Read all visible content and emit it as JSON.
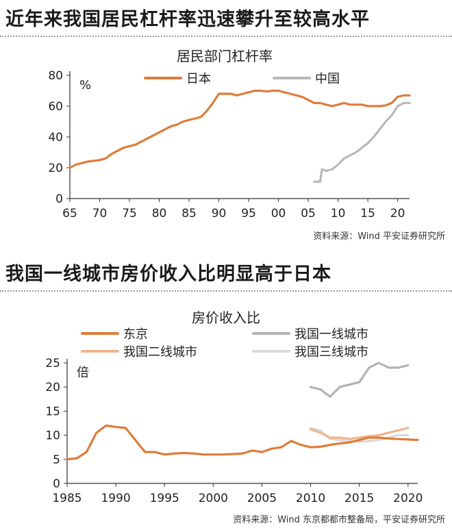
{
  "headlines": {
    "top": "近年来我国居民杠杆率迅速攀升至较高水平",
    "bottom": "我国一线城市房价收入比明显高于日本"
  },
  "chart_data": [
    {
      "type": "line",
      "title": "居民部门杠杆率",
      "unit_label": "%",
      "source": "资料来源：Wind   平安证券研究所",
      "xlim": [
        1965,
        2022
      ],
      "ylim": [
        0,
        80
      ],
      "x_ticks": [
        1965,
        1970,
        1975,
        1980,
        1985,
        1990,
        1995,
        2000,
        2005,
        2010,
        2015,
        2020
      ],
      "x_tick_labels": [
        "65",
        "70",
        "75",
        "80",
        "85",
        "90",
        "95",
        "00",
        "05",
        "10",
        "15",
        "20"
      ],
      "y_ticks": [
        0,
        20,
        40,
        60,
        80
      ],
      "grid": false,
      "legend_position": "top",
      "series": [
        {
          "name": "日本",
          "color": "#E07B39",
          "points": [
            [
              1965,
              20
            ],
            [
              1966,
              22
            ],
            [
              1967,
              23
            ],
            [
              1968,
              24
            ],
            [
              1969,
              24.5
            ],
            [
              1970,
              25
            ],
            [
              1971,
              26
            ],
            [
              1972,
              29
            ],
            [
              1973,
              31
            ],
            [
              1974,
              33
            ],
            [
              1975,
              34
            ],
            [
              1976,
              35
            ],
            [
              1977,
              37
            ],
            [
              1978,
              39
            ],
            [
              1979,
              41
            ],
            [
              1980,
              43
            ],
            [
              1981,
              45
            ],
            [
              1982,
              47
            ],
            [
              1983,
              48
            ],
            [
              1984,
              50
            ],
            [
              1985,
              51
            ],
            [
              1986,
              52
            ],
            [
              1987,
              53
            ],
            [
              1988,
              57
            ],
            [
              1989,
              62
            ],
            [
              1990,
              68
            ],
            [
              1991,
              68
            ],
            [
              1992,
              68
            ],
            [
              1993,
              67
            ],
            [
              1994,
              68
            ],
            [
              1995,
              69
            ],
            [
              1996,
              70
            ],
            [
              1997,
              70
            ],
            [
              1998,
              69.5
            ],
            [
              1999,
              70
            ],
            [
              2000,
              70
            ],
            [
              2001,
              69
            ],
            [
              2002,
              68
            ],
            [
              2003,
              67
            ],
            [
              2004,
              66
            ],
            [
              2005,
              64
            ],
            [
              2006,
              62
            ],
            [
              2007,
              62
            ],
            [
              2008,
              61
            ],
            [
              2009,
              60
            ],
            [
              2010,
              61
            ],
            [
              2011,
              62
            ],
            [
              2012,
              61
            ],
            [
              2013,
              61
            ],
            [
              2014,
              61
            ],
            [
              2015,
              60
            ],
            [
              2016,
              60
            ],
            [
              2017,
              60
            ],
            [
              2018,
              60.5
            ],
            [
              2019,
              62
            ],
            [
              2020,
              66
            ],
            [
              2021,
              67
            ],
            [
              2022,
              67
            ]
          ]
        },
        {
          "name": "中国",
          "color": "#B8B8BA",
          "points": [
            [
              2006,
              11
            ],
            [
              2007,
              11
            ],
            [
              2007.3,
              19
            ],
            [
              2008,
              18
            ],
            [
              2009,
              19
            ],
            [
              2010,
              22
            ],
            [
              2011,
              26
            ],
            [
              2012,
              28
            ],
            [
              2013,
              30
            ],
            [
              2014,
              33
            ],
            [
              2015,
              36
            ],
            [
              2016,
              40
            ],
            [
              2017,
              45
            ],
            [
              2018,
              50
            ],
            [
              2019,
              54
            ],
            [
              2020,
              60
            ],
            [
              2021,
              62
            ],
            [
              2022,
              62
            ]
          ]
        }
      ]
    },
    {
      "type": "line",
      "title": "房价收入比",
      "unit_label": "倍",
      "source": "资料来源：Wind   东京都都市整备局，平安证券研究所",
      "xlim": [
        1985,
        2021
      ],
      "ylim": [
        0,
        25
      ],
      "x_ticks": [
        1985,
        1990,
        1995,
        2000,
        2005,
        2010,
        2015,
        2020
      ],
      "x_tick_labels": [
        "1985",
        "1990",
        "1995",
        "2000",
        "2005",
        "2010",
        "2015",
        "2020"
      ],
      "y_ticks": [
        0,
        5,
        10,
        15,
        20,
        25
      ],
      "grid": false,
      "legend_position": "top",
      "series": [
        {
          "name": "东京",
          "color": "#E07B39",
          "points": [
            [
              1985,
              5.0
            ],
            [
              1986,
              5.2
            ],
            [
              1987,
              6.5
            ],
            [
              1988,
              10.5
            ],
            [
              1989,
              12.0
            ],
            [
              1990,
              11.7
            ],
            [
              1991,
              11.5
            ],
            [
              1992,
              9.0
            ],
            [
              1993,
              6.5
            ],
            [
              1994,
              6.5
            ],
            [
              1995,
              6.0
            ],
            [
              1996,
              6.2
            ],
            [
              1997,
              6.3
            ],
            [
              1998,
              6.2
            ],
            [
              1999,
              6.0
            ],
            [
              2000,
              6.0
            ],
            [
              2001,
              6.0
            ],
            [
              2002,
              6.1
            ],
            [
              2003,
              6.2
            ],
            [
              2004,
              6.8
            ],
            [
              2005,
              6.5
            ],
            [
              2006,
              7.2
            ],
            [
              2007,
              7.5
            ],
            [
              2008,
              8.8
            ],
            [
              2009,
              8.0
            ],
            [
              2010,
              7.5
            ],
            [
              2011,
              7.6
            ],
            [
              2012,
              8.0
            ],
            [
              2013,
              8.3
            ],
            [
              2014,
              8.5
            ],
            [
              2015,
              9.0
            ],
            [
              2016,
              9.5
            ],
            [
              2017,
              9.5
            ],
            [
              2018,
              9.3
            ],
            [
              2019,
              9.2
            ],
            [
              2020,
              9.1
            ],
            [
              2021,
              9.0
            ]
          ]
        },
        {
          "name": "我国一线城市",
          "color": "#B2B2B4",
          "points": [
            [
              2010,
              20
            ],
            [
              2011,
              19.5
            ],
            [
              2012,
              18
            ],
            [
              2013,
              20
            ],
            [
              2014,
              20.5
            ],
            [
              2015,
              21
            ],
            [
              2016,
              24
            ],
            [
              2017,
              25
            ],
            [
              2018,
              24
            ],
            [
              2019,
              24
            ],
            [
              2020,
              24.5
            ]
          ]
        },
        {
          "name": "我国二线城市",
          "color": "#F2B48A",
          "points": [
            [
              2010,
              11.2
            ],
            [
              2011,
              10.5
            ],
            [
              2012,
              9.5
            ],
            [
              2013,
              9.5
            ],
            [
              2014,
              9.2
            ],
            [
              2015,
              9.5
            ],
            [
              2016,
              9.8
            ],
            [
              2017,
              10
            ],
            [
              2018,
              10.5
            ],
            [
              2019,
              11
            ],
            [
              2020,
              11.5
            ]
          ]
        },
        {
          "name": "我国三线城市",
          "color": "#D9D9DB",
          "points": [
            [
              2010,
              11.5
            ],
            [
              2011,
              11
            ],
            [
              2012,
              9.2
            ],
            [
              2013,
              9
            ],
            [
              2014,
              8.8
            ],
            [
              2015,
              8.6
            ],
            [
              2016,
              8.8
            ],
            [
              2017,
              9
            ],
            [
              2018,
              9.5
            ],
            [
              2019,
              10
            ],
            [
              2020,
              10
            ]
          ]
        }
      ]
    }
  ]
}
